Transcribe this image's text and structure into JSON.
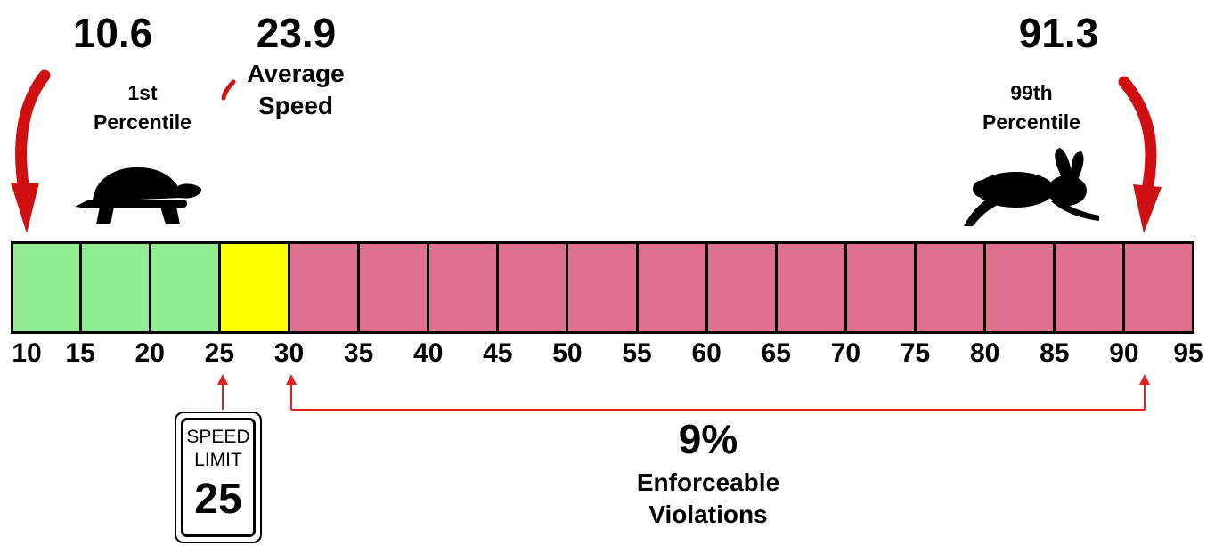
{
  "stats": {
    "p1": {
      "value": "10.6",
      "label_line1": "1st",
      "label_line2": "Percentile"
    },
    "avg": {
      "value": "23.9",
      "label_line1": "Average",
      "label_line2": "Speed"
    },
    "p99": {
      "value": "91.3",
      "label_line1": "99th",
      "label_line2": "Percentile"
    }
  },
  "scale": {
    "ticks": [
      "10",
      "15",
      "20",
      "25",
      "30",
      "35",
      "40",
      "45",
      "50",
      "55",
      "60",
      "65",
      "70",
      "75",
      "80",
      "85",
      "90",
      "95"
    ],
    "segments": [
      {
        "from": 10,
        "to": 15,
        "color": "#90ee90"
      },
      {
        "from": 15,
        "to": 20,
        "color": "#90ee90"
      },
      {
        "from": 20,
        "to": 25,
        "color": "#90ee90"
      },
      {
        "from": 25,
        "to": 30,
        "color": "#ffff00"
      },
      {
        "from": 30,
        "to": 35,
        "color": "#e07090"
      },
      {
        "from": 35,
        "to": 40,
        "color": "#e07090"
      },
      {
        "from": 40,
        "to": 45,
        "color": "#e07090"
      },
      {
        "from": 45,
        "to": 50,
        "color": "#e07090"
      },
      {
        "from": 50,
        "to": 55,
        "color": "#e07090"
      },
      {
        "from": 55,
        "to": 60,
        "color": "#e07090"
      },
      {
        "from": 60,
        "to": 65,
        "color": "#e07090"
      },
      {
        "from": 65,
        "to": 70,
        "color": "#e07090"
      },
      {
        "from": 70,
        "to": 75,
        "color": "#e07090"
      },
      {
        "from": 75,
        "to": 80,
        "color": "#e07090"
      },
      {
        "from": 80,
        "to": 85,
        "color": "#e07090"
      },
      {
        "from": 85,
        "to": 90,
        "color": "#e07090"
      },
      {
        "from": 90,
        "to": 95,
        "color": "#e07090"
      }
    ]
  },
  "sign": {
    "title_line1": "SPEED",
    "title_line2": "LIMIT",
    "limit": "25"
  },
  "violations": {
    "percent": "9%",
    "label_line1": "Enforceable",
    "label_line2": "Violations"
  },
  "icons": {
    "slow": "tortoise-icon",
    "fast": "rabbit-icon"
  },
  "colors": {
    "arrow": "#d01010",
    "bracket": "#e02020"
  }
}
